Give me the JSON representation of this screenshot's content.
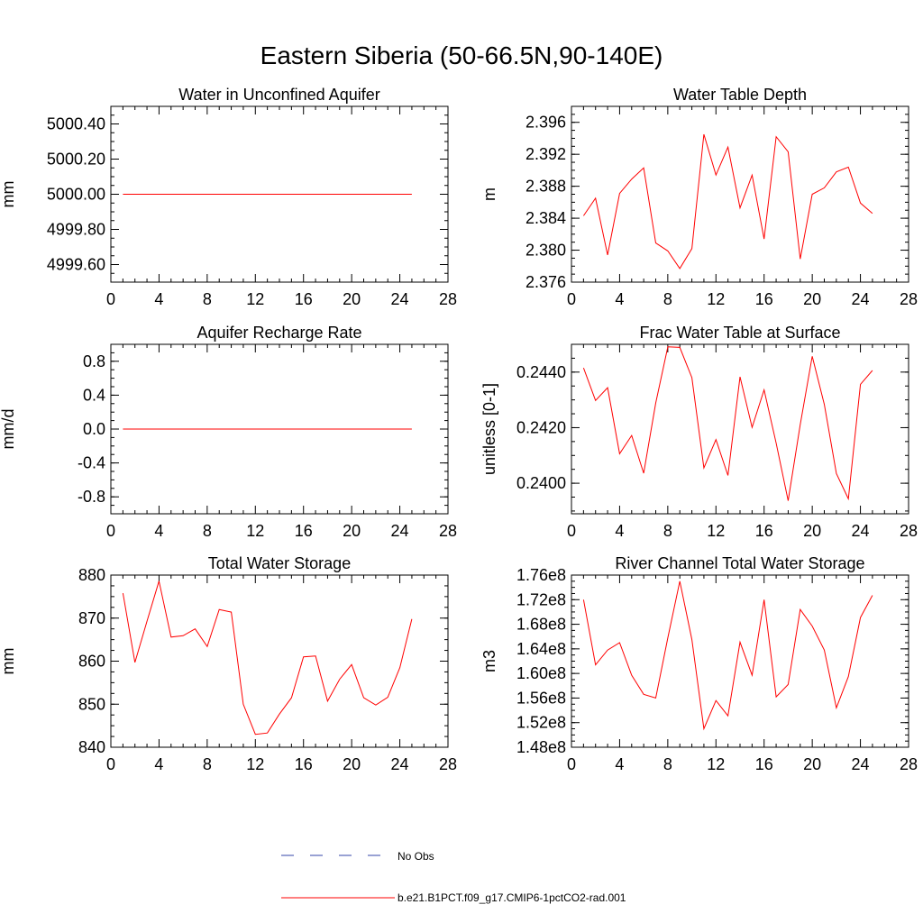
{
  "figure": {
    "title": "Eastern Siberia (50-66.5N,90-140E)",
    "colors": {
      "model_line": "#ff0000",
      "obs_line": "#3344aa",
      "axis": "#000000"
    }
  },
  "legend": {
    "placement": "bottom-center",
    "entries": [
      {
        "label": "No Obs",
        "style": "dashed",
        "color": "#3344aa"
      },
      {
        "label": "b.e21.B1PCT.f09_g17.CMIP6-1pctCO2-rad.001",
        "style": "solid",
        "color": "#ff0000"
      }
    ]
  },
  "chart_data": [
    {
      "type": "line",
      "title": "Water in Unconfined Aquifer",
      "xlabel": "",
      "ylabel": "mm",
      "xlim": [
        0,
        28
      ],
      "ylim": [
        4999.5,
        5000.5
      ],
      "xticks": [
        0,
        4,
        8,
        12,
        16,
        20,
        24,
        28
      ],
      "yticks": [
        4999.6,
        4999.8,
        5000.0,
        5000.2,
        5000.4
      ],
      "ytick_labels": [
        "4999.60",
        "4999.80",
        "5000.00",
        "5000.20",
        "5000.40"
      ],
      "series": [
        {
          "name": "b.e21.B1PCT.f09_g17.CMIP6-1pctCO2-rad.001",
          "x": [
            1,
            2,
            3,
            4,
            5,
            6,
            7,
            8,
            9,
            10,
            11,
            12,
            13,
            14,
            15,
            16,
            17,
            18,
            19,
            20,
            21,
            22,
            23,
            24,
            25
          ],
          "y": [
            5000,
            5000,
            5000,
            5000,
            5000,
            5000,
            5000,
            5000,
            5000,
            5000,
            5000,
            5000,
            5000,
            5000,
            5000,
            5000,
            5000,
            5000,
            5000,
            5000,
            5000,
            5000,
            5000,
            5000,
            5000
          ]
        }
      ]
    },
    {
      "type": "line",
      "title": "Water Table Depth",
      "xlabel": "",
      "ylabel": "m",
      "xlim": [
        0,
        28
      ],
      "ylim": [
        2.376,
        2.398
      ],
      "xticks": [
        0,
        4,
        8,
        12,
        16,
        20,
        24,
        28
      ],
      "yticks": [
        2.376,
        2.38,
        2.384,
        2.388,
        2.392,
        2.396
      ],
      "ytick_labels": [
        "2.376",
        "2.380",
        "2.384",
        "2.388",
        "2.392",
        "2.396"
      ],
      "series": [
        {
          "name": "b.e21.B1PCT.f09_g17.CMIP6-1pctCO2-rad.001",
          "x": [
            1,
            2,
            3,
            4,
            5,
            6,
            7,
            8,
            9,
            10,
            11,
            12,
            13,
            14,
            15,
            16,
            17,
            18,
            19,
            20,
            21,
            22,
            23,
            24,
            25
          ],
          "y": [
            2.3843,
            2.3865,
            2.3794,
            2.3871,
            2.3889,
            2.3903,
            2.3809,
            2.3799,
            2.3777,
            2.3802,
            2.3945,
            2.3894,
            2.3929,
            2.3853,
            2.3894,
            2.3814,
            2.3942,
            2.3923,
            2.3789,
            2.387,
            2.3878,
            2.3898,
            2.3904,
            2.3859,
            2.3846
          ]
        }
      ]
    },
    {
      "type": "line",
      "title": "Aquifer Recharge Rate",
      "xlabel": "",
      "ylabel": "mm/d",
      "xlim": [
        0,
        28
      ],
      "ylim": [
        -1.0,
        1.0
      ],
      "xticks": [
        0,
        4,
        8,
        12,
        16,
        20,
        24,
        28
      ],
      "yticks": [
        -0.8,
        -0.4,
        0.0,
        0.4,
        0.8
      ],
      "ytick_labels": [
        "-0.8",
        "-0.4",
        "0.0",
        "0.4",
        "0.8"
      ],
      "series": [
        {
          "name": "b.e21.B1PCT.f09_g17.CMIP6-1pctCO2-rad.001",
          "x": [
            1,
            2,
            3,
            4,
            5,
            6,
            7,
            8,
            9,
            10,
            11,
            12,
            13,
            14,
            15,
            16,
            17,
            18,
            19,
            20,
            21,
            22,
            23,
            24,
            25
          ],
          "y": [
            0,
            0,
            0,
            0,
            0,
            0,
            0,
            0,
            0,
            0,
            0,
            0,
            0,
            0,
            0,
            0,
            0,
            0,
            0,
            0,
            0,
            0,
            0,
            0,
            0
          ]
        }
      ]
    },
    {
      "type": "line",
      "title": "Frac Water Table at Surface",
      "xlabel": "",
      "ylabel": "unitless [0-1]",
      "xlim": [
        0,
        28
      ],
      "ylim": [
        0.2389,
        0.245
      ],
      "xticks": [
        0,
        4,
        8,
        12,
        16,
        20,
        24,
        28
      ],
      "yticks": [
        0.24,
        0.242,
        0.244
      ],
      "ytick_labels": [
        "0.2400",
        "0.2420",
        "0.2440"
      ],
      "series": [
        {
          "name": "b.e21.B1PCT.f09_g17.CMIP6-1pctCO2-rad.001",
          "x": [
            1,
            2,
            3,
            4,
            5,
            6,
            7,
            8,
            9,
            10,
            11,
            12,
            13,
            14,
            15,
            16,
            17,
            18,
            19,
            20,
            21,
            22,
            23,
            24,
            25
          ],
          "y": [
            0.24415,
            0.24298,
            0.24344,
            0.24106,
            0.24172,
            0.24036,
            0.24289,
            0.24491,
            0.24489,
            0.2438,
            0.24055,
            0.24157,
            0.24028,
            0.24383,
            0.24201,
            0.24336,
            0.24144,
            0.23937,
            0.24211,
            0.24457,
            0.24284,
            0.24035,
            0.23944,
            0.24356,
            0.24406
          ]
        }
      ]
    },
    {
      "type": "line",
      "title": "Total Water Storage",
      "xlabel": "",
      "ylabel": "mm",
      "xlim": [
        0,
        28
      ],
      "ylim": [
        840,
        880
      ],
      "xticks": [
        0,
        4,
        8,
        12,
        16,
        20,
        24,
        28
      ],
      "yticks": [
        840,
        850,
        860,
        870,
        880
      ],
      "ytick_labels": [
        "840",
        "850",
        "860",
        "870",
        "880"
      ],
      "series": [
        {
          "name": "b.e21.B1PCT.f09_g17.CMIP6-1pctCO2-rad.001",
          "x": [
            1,
            2,
            3,
            4,
            5,
            6,
            7,
            8,
            9,
            10,
            11,
            12,
            13,
            14,
            15,
            16,
            17,
            18,
            19,
            20,
            21,
            22,
            23,
            24,
            25
          ],
          "y": [
            875.8,
            859.7,
            869.3,
            878.6,
            865.6,
            865.9,
            867.5,
            863.4,
            872.0,
            871.4,
            850.0,
            843.0,
            843.3,
            847.7,
            851.5,
            861.0,
            861.2,
            850.7,
            855.8,
            859.2,
            851.5,
            849.8,
            851.6,
            858.5,
            869.8
          ]
        }
      ]
    },
    {
      "type": "line",
      "title": "River Channel Total Water Storage",
      "xlabel": "",
      "ylabel": "m3",
      "xlim": [
        0,
        28
      ],
      "ylim": [
        148000000.0,
        176000000.0
      ],
      "xticks": [
        0,
        4,
        8,
        12,
        16,
        20,
        24,
        28
      ],
      "yticks": [
        148000000.0,
        152000000.0,
        156000000.0,
        160000000.0,
        164000000.0,
        168000000.0,
        172000000.0,
        176000000.0
      ],
      "ytick_labels": [
        "1.48e8",
        "1.52e8",
        "1.56e8",
        "1.60e8",
        "1.64e8",
        "1.68e8",
        "1.72e8",
        "1.76e8"
      ],
      "series": [
        {
          "name": "b.e21.B1PCT.f09_g17.CMIP6-1pctCO2-rad.001",
          "x": [
            1,
            2,
            3,
            4,
            5,
            6,
            7,
            8,
            9,
            10,
            11,
            12,
            13,
            14,
            15,
            16,
            17,
            18,
            19,
            20,
            21,
            22,
            23,
            24,
            25
          ],
          "y": [
            172000000.0,
            161400000.0,
            163800000.0,
            165000000.0,
            159700000.0,
            156600000.0,
            156000000.0,
            165800000.0,
            175000000.0,
            165500000.0,
            151000000.0,
            155600000.0,
            153100000.0,
            165100000.0,
            159700000.0,
            172000000.0,
            156200000.0,
            158200000.0,
            170400000.0,
            167700000.0,
            163800000.0,
            154400000.0,
            159500000.0,
            169100000.0,
            172700000.0
          ]
        }
      ]
    }
  ]
}
